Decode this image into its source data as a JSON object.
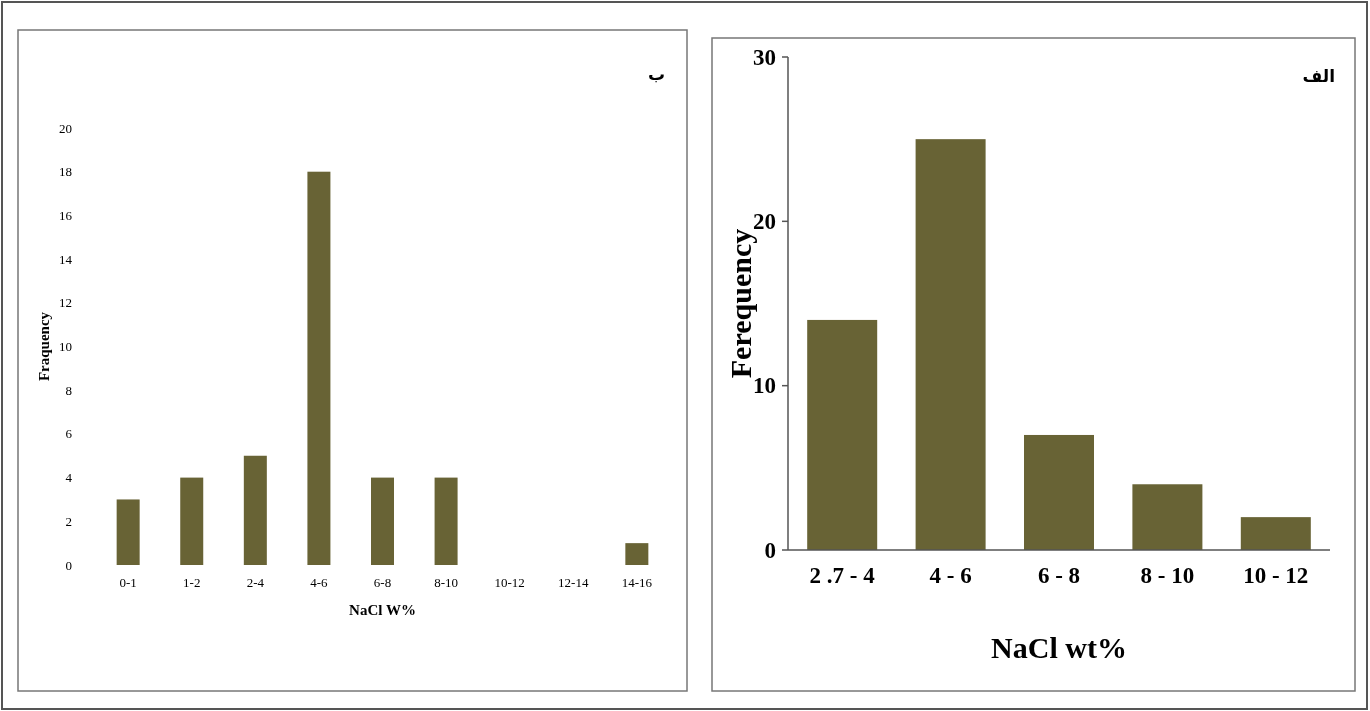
{
  "chart_data": [
    {
      "type": "bar",
      "title": "ب",
      "xlabel": "NaCl W%",
      "ylabel": "Fraquency",
      "categories": [
        "0-1",
        "1-2",
        "2-4",
        "4-6",
        "6-8",
        "8-10",
        "10-12",
        "12-14",
        "14-16"
      ],
      "values": [
        3,
        4,
        5,
        18,
        4,
        4,
        0,
        0,
        1
      ],
      "color": "#686335",
      "ylim": [
        0,
        20
      ],
      "yticks": [
        0,
        2,
        4,
        6,
        8,
        10,
        12,
        14,
        16,
        18,
        20
      ],
      "grid": false
    },
    {
      "type": "bar",
      "title": "الف",
      "xlabel": "NaCl wt%",
      "ylabel": "Ferequency",
      "categories": [
        "2 .7 - 4",
        "4 - 6",
        "6 - 8",
        "8 - 10",
        "10 - 12"
      ],
      "values": [
        14,
        25,
        7,
        4,
        2
      ],
      "color": "#686335",
      "ylim": [
        0,
        30
      ],
      "yticks": [
        0,
        10,
        20,
        30
      ],
      "grid": false
    }
  ]
}
